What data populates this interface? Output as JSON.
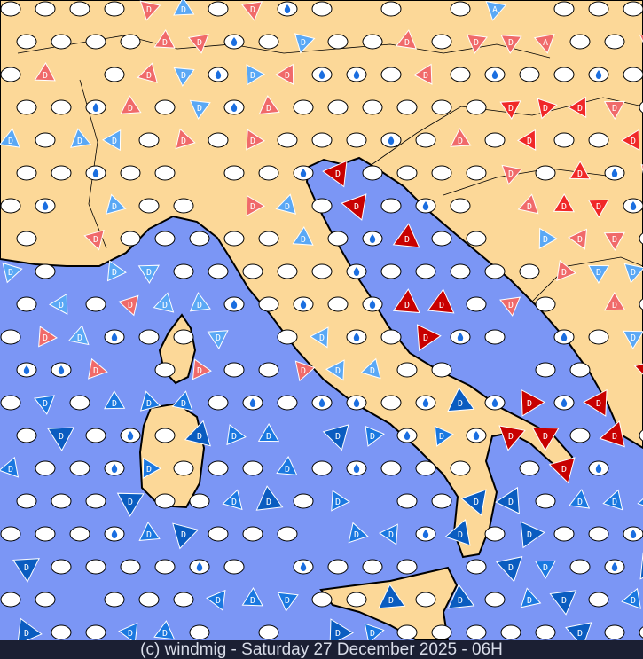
{
  "footer": {
    "credit": "(c) windmig - Saturday 27 December 2025 - 06H"
  },
  "legend_letters": {
    "descending": "D",
    "ascending": "A"
  },
  "colors": {
    "sea": "#7b96f5",
    "land": "#fcd898",
    "marker_calm": "#ffffff",
    "strong_red": "#c80000",
    "red": "#f02828",
    "light_red": "#f06a6a",
    "light_blue": "#5aa8f5",
    "blue": "#1a78e0",
    "dark_blue": "#0a5cc0",
    "rain_icon": "#1a6ee0"
  },
  "icons": {
    "rain": "water-drop-icon",
    "wind": "wind-triangle-icon",
    "calm": "calm-ellipse-icon"
  }
}
